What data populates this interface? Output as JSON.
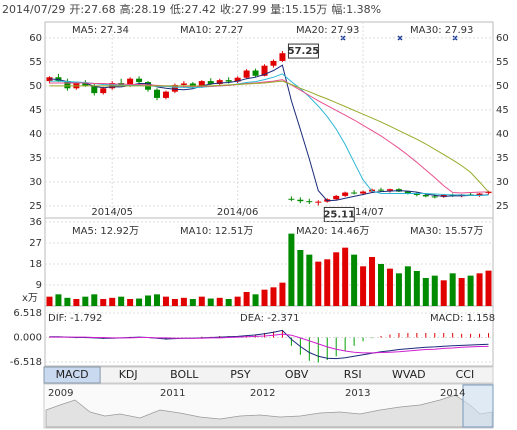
{
  "header": {
    "date": "2014/07/29",
    "items": [
      "开:27.68",
      "高:28.19",
      "低:27.42",
      "收:27.99",
      "量:15.15万",
      "幅:1.38%"
    ]
  },
  "chart_data": [
    {
      "type": "candlestick",
      "up_color": "#e00000",
      "down_color": "#008a00",
      "grid": true,
      "ylim": [
        22.5,
        63.3
      ],
      "yticks": [
        25,
        30,
        35,
        40,
        45,
        50,
        55,
        60
      ],
      "xticks": [
        {
          "value": 7,
          "label": "2014/05"
        },
        {
          "value": 21,
          "label": "2014/06"
        },
        {
          "value": 35,
          "label": "2014/07"
        }
      ],
      "annotations": [
        {
          "value": 57.25,
          "label": "57.25"
        },
        {
          "value": 25.11,
          "label": "25.11"
        }
      ],
      "candles": [
        [
          51,
          52,
          50.5,
          51.8
        ],
        [
          51.8,
          52.5,
          50.8,
          51
        ],
        [
          51,
          51.5,
          49,
          49.5
        ],
        [
          49.5,
          50.8,
          49.2,
          50.5
        ],
        [
          50.5,
          51.2,
          49.8,
          50
        ],
        [
          50,
          50.4,
          48,
          48.5
        ],
        [
          48.5,
          49.8,
          48.2,
          49.5
        ],
        [
          49.5,
          51,
          49.2,
          50.6
        ],
        [
          50.6,
          51.5,
          50,
          50.2
        ],
        [
          50.2,
          51.8,
          49.8,
          51.5
        ],
        [
          51.5,
          52,
          50.5,
          50.8
        ],
        [
          50.8,
          51,
          48.8,
          49.2
        ],
        [
          49.2,
          49.5,
          47,
          47.5
        ],
        [
          47.5,
          49,
          47.2,
          48.8
        ],
        [
          48.8,
          50.5,
          48.5,
          50.2
        ],
        [
          50.2,
          51,
          49.6,
          50.5
        ],
        [
          50.5,
          50.8,
          49.5,
          49.8
        ],
        [
          49.8,
          51.2,
          49.6,
          51
        ],
        [
          51,
          51.6,
          50.2,
          50.4
        ],
        [
          50.4,
          51.5,
          50.2,
          51.2
        ],
        [
          51.2,
          51.8,
          50.5,
          50.9
        ],
        [
          50.9,
          52,
          50.6,
          51.7
        ],
        [
          51.7,
          53.5,
          51.5,
          53.2
        ],
        [
          53.2,
          53.6,
          51.8,
          52.1
        ],
        [
          52.1,
          54.5,
          52,
          54.2
        ],
        [
          54.2,
          55.5,
          53.8,
          55.2
        ],
        [
          55.2,
          57.25,
          55,
          56.8
        ],
        [
          26.5,
          27,
          26,
          26.3
        ],
        [
          26.3,
          26.8,
          25.6,
          26
        ],
        [
          26,
          26.5,
          25.4,
          25.8
        ],
        [
          25.8,
          26.2,
          25.11,
          25.9
        ],
        [
          25.9,
          26.6,
          25.7,
          26.4
        ],
        [
          26.4,
          27.3,
          26.2,
          27.1
        ],
        [
          27.1,
          28,
          26.9,
          27.8
        ],
        [
          27.8,
          28.3,
          27.4,
          27.6
        ],
        [
          27.6,
          28.2,
          27.3,
          28
        ],
        [
          28,
          28.6,
          27.7,
          28.4
        ],
        [
          28.4,
          28.8,
          28,
          28.2
        ],
        [
          28.2,
          28.6,
          27.8,
          28.5
        ],
        [
          28.5,
          28.7,
          27.9,
          28
        ],
        [
          28,
          28.2,
          27.4,
          27.6
        ],
        [
          27.6,
          27.9,
          27,
          27.3
        ],
        [
          27.3,
          27.6,
          26.8,
          27
        ],
        [
          27,
          27.4,
          26.6,
          26.9
        ],
        [
          26.9,
          27.5,
          26.7,
          27.3
        ],
        [
          27.3,
          27.6,
          26.9,
          27.1
        ],
        [
          27.1,
          27.5,
          26.8,
          27.4
        ],
        [
          27.4,
          27.8,
          27.1,
          27.2
        ],
        [
          27.2,
          27.7,
          26.9,
          27.6
        ],
        [
          27.68,
          28.19,
          27.42,
          27.99
        ]
      ],
      "series": [
        {
          "name": "MA5: 27.34",
          "color": "#1a2a7a",
          "values": [
            51.5,
            51.3,
            50.9,
            50.7,
            50.6,
            49.9,
            49.6,
            49.8,
            49.8,
            50.1,
            50.5,
            50.5,
            49.8,
            49.5,
            49.3,
            49.2,
            49.4,
            50,
            50.4,
            50.6,
            50.7,
            51,
            51.5,
            51.8,
            52.4,
            53.2,
            54.3,
            46.9,
            40.9,
            34.8,
            28.2,
            26.1,
            26.2,
            26.6,
            27,
            27.4,
            27.8,
            28,
            28.1,
            28.2,
            28.1,
            27.9,
            27.5,
            27.2,
            27,
            27.1,
            27.1,
            27.2,
            27.2,
            27.34
          ]
        },
        {
          "name": "MA10: 27.27",
          "color": "#2cb8d5",
          "values": [
            51,
            51,
            50.9,
            50.8,
            50.7,
            50.5,
            50.3,
            50.2,
            50.1,
            50.1,
            50.1,
            50,
            49.9,
            49.9,
            49.7,
            49.7,
            49.6,
            49.7,
            49.9,
            50,
            50.1,
            50.4,
            50.7,
            50.9,
            51.3,
            51.8,
            52.5,
            50.9,
            49.4,
            47.7,
            45.8,
            43.6,
            41,
            37.8,
            34.1,
            30.4,
            28.1,
            27.6,
            27.6,
            27.6,
            27.6,
            27.6,
            27.6,
            27.5,
            27.4,
            27.3,
            27.3,
            27.2,
            27.2,
            27.27
          ]
        },
        {
          "name": "MA20: 27.93",
          "color": "#e8508f",
          "values": [
            50.6,
            50.6,
            50.6,
            50.6,
            50.6,
            50.5,
            50.5,
            50.4,
            50.4,
            50.3,
            50.3,
            50.2,
            50.1,
            50,
            50,
            49.9,
            49.9,
            49.9,
            49.9,
            50,
            50.1,
            50.3,
            50.5,
            50.6,
            50.8,
            51,
            51.3,
            50.2,
            49.1,
            48,
            46.9,
            45.9,
            44.9,
            43.9,
            42.9,
            41.8,
            40.7,
            39.6,
            38.3,
            37,
            35.6,
            34.1,
            32.5,
            30.9,
            29.2,
            27.8,
            27.7,
            27.8,
            27.9,
            27.93
          ]
        },
        {
          "name": "MA30: 27.93",
          "color": "#9aaa2a",
          "values": [
            50,
            50,
            50,
            50,
            50,
            50,
            50,
            50,
            50,
            50,
            50,
            50,
            50,
            50,
            50,
            50,
            50,
            50,
            50,
            50.1,
            50.2,
            50.3,
            50.4,
            50.5,
            50.6,
            50.8,
            51,
            50.3,
            49.5,
            48.8,
            48,
            47.3,
            46.5,
            45.7,
            44.9,
            44.1,
            43.3,
            42.5,
            41.6,
            40.7,
            39.8,
            38.9,
            37.9,
            36.8,
            35.7,
            34.6,
            33.4,
            32,
            30,
            27.93
          ]
        }
      ]
    },
    {
      "type": "volume",
      "unit_label": "x万",
      "ylim": [
        0,
        37.7
      ],
      "yticks": [
        9,
        18,
        27,
        36
      ],
      "legend": [
        {
          "name": "MA5: 12.92万",
          "color": "#1a2a7a"
        },
        {
          "name": "MA10: 12.51万",
          "color": "#2cb8d5"
        },
        {
          "name": "MA20: 14.46万",
          "color": "#e8508f"
        },
        {
          "name": "MA30: 15.57万",
          "color": "#9aaa2a"
        }
      ],
      "values": [
        4,
        5,
        3.5,
        3,
        4,
        5,
        3,
        3.5,
        4,
        3,
        3.2,
        4.5,
        5,
        4,
        3,
        3.5,
        3,
        4,
        3.2,
        3.5,
        3,
        4,
        6,
        5,
        7,
        8,
        10,
        31,
        24,
        22,
        19,
        20,
        23,
        25,
        22,
        17,
        21,
        18,
        16,
        14,
        17,
        15,
        12,
        13,
        11,
        14,
        12,
        13,
        14,
        15.15
      ]
    },
    {
      "type": "macd",
      "ylim": [
        -7.58,
        8.38
      ],
      "yticks": [
        6.518,
        {
          "value": 0,
          "label": "0.000"
        },
        -6.518
      ],
      "legend": [
        {
          "name": "DIF: -1.792",
          "color": "#1a2a7a"
        },
        {
          "name": "DEA: -2.371",
          "color": "#d11fd1"
        },
        {
          "name": "MACD: 1.158",
          "color": "#e00000"
        }
      ],
      "dif": [
        0.2,
        0.2,
        0.1,
        0,
        0,
        -0.1,
        -0.2,
        -0.2,
        -0.1,
        0,
        0.1,
        0,
        -0.2,
        -0.4,
        -0.3,
        -0.2,
        -0.2,
        -0.1,
        0,
        0.1,
        0.2,
        0.3,
        0.5,
        0.7,
        1,
        1.4,
        1.9,
        -0.5,
        -2.4,
        -4,
        -5,
        -5.5,
        -5.6,
        -5.4,
        -5,
        -4.6,
        -4.2,
        -3.8,
        -3.5,
        -3.2,
        -3,
        -2.8,
        -2.6,
        -2.5,
        -2.3,
        -2.2,
        -2.1,
        -2,
        -1.9,
        -1.792
      ],
      "dea": [
        0.1,
        0.1,
        0.1,
        0.1,
        0.1,
        0,
        0,
        -0.1,
        -0.1,
        -0.1,
        0,
        0,
        -0.1,
        -0.1,
        -0.2,
        -0.2,
        -0.2,
        -0.2,
        -0.1,
        -0.1,
        0,
        0.1,
        0.2,
        0.3,
        0.4,
        0.6,
        0.9,
        0.6,
        -0.1,
        -0.9,
        -1.7,
        -2.5,
        -3.1,
        -3.6,
        -3.9,
        -4.1,
        -4.1,
        -4,
        -3.9,
        -3.8,
        -3.6,
        -3.4,
        -3.2,
        -3.1,
        -2.9,
        -2.8,
        -2.6,
        -2.5,
        -2.4,
        -2.371
      ],
      "macd": [
        0.2,
        0.2,
        0,
        -0.2,
        -0.2,
        -0.2,
        -0.4,
        -0.2,
        0,
        0.2,
        0.2,
        0,
        -0.2,
        -0.6,
        -0.2,
        0,
        0,
        0.2,
        0.2,
        0.4,
        0.4,
        0.4,
        0.6,
        0.8,
        1.2,
        1.6,
        2,
        -2.2,
        -4.6,
        -6.2,
        -6.6,
        -6,
        -5,
        -3.6,
        -2.2,
        -1,
        -0.2,
        0.4,
        0.8,
        1.2,
        1.2,
        1.2,
        1.2,
        1.2,
        1.2,
        1.2,
        1,
        1,
        1,
        1.158
      ]
    }
  ],
  "tabs": [
    "MACD",
    "KDJ",
    "BOLL",
    "PSY",
    "OBV",
    "RSI",
    "WVAD",
    "CCI"
  ],
  "overview": {
    "years": [
      "2009",
      "2011",
      "2012",
      "2013",
      "2014"
    ]
  }
}
